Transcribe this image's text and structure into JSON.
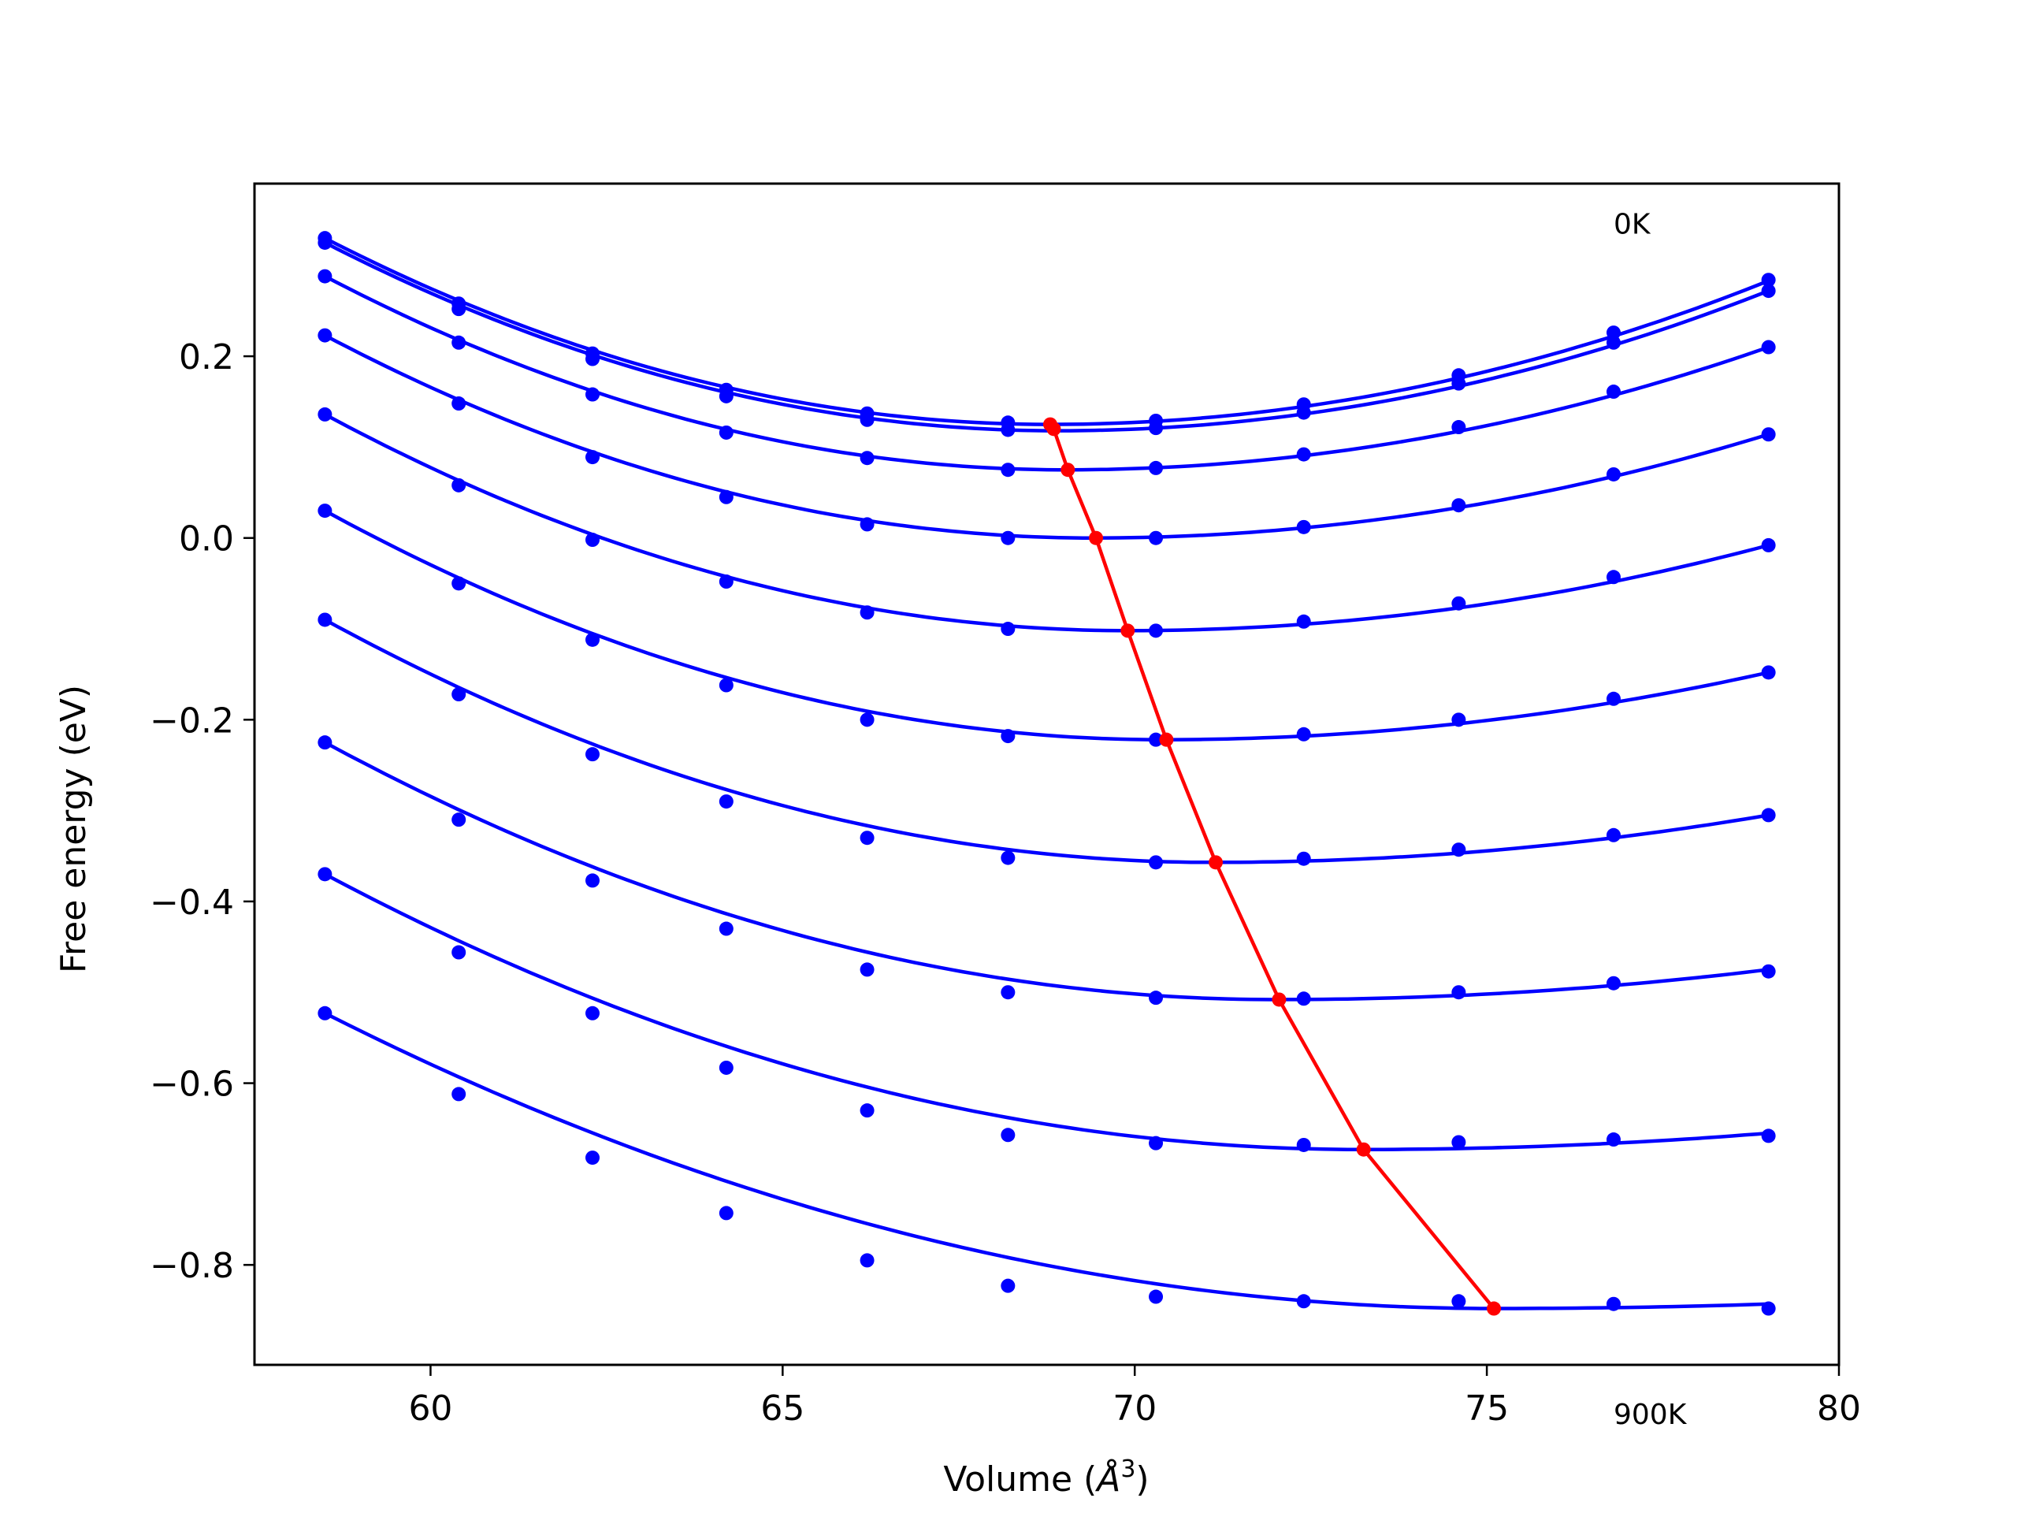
{
  "chart_data": {
    "type": "line",
    "xlabel": "Volume (",
    "xlabel_unit": "Å",
    "xlabel_unit_sup": "3",
    "xlabel_close": ")",
    "ylabel": "Free energy (eV)",
    "xlim": [
      57.5,
      80
    ],
    "ylim": [
      -0.91,
      0.39
    ],
    "xticks": [
      60,
      65,
      70,
      75,
      80
    ],
    "yticks": [
      -0.8,
      -0.6,
      -0.4,
      -0.2,
      0.0,
      0.2
    ],
    "xtick_labels": [
      "60",
      "65",
      "70",
      "75",
      "80"
    ],
    "ytick_labels": [
      "−0.8",
      "−0.6",
      "−0.4",
      "−0.2",
      "0.0",
      "0.2"
    ],
    "grid": false,
    "annotations": [
      {
        "text": "0K",
        "x": 76.8,
        "y": 0.335
      },
      {
        "text": "900K",
        "x": 76.8,
        "y": -0.975
      }
    ],
    "colors": {
      "curves": "#0000ff",
      "minima": "#ff0000"
    },
    "x": [
      58.5,
      60.4,
      62.3,
      64.2,
      66.2,
      68.2,
      70.3,
      72.4,
      74.6,
      76.8,
      79.0
    ],
    "series": [
      {
        "points": [
          0.33,
          0.258,
          0.203,
          0.163,
          0.137,
          0.127,
          0.129,
          0.147,
          0.179,
          0.226,
          0.284
        ],
        "fit_min": [
          68.8,
          0.125
        ],
        "fit_end": [
          79.0,
          0.283
        ]
      },
      {
        "points": [
          0.325,
          0.252,
          0.197,
          0.156,
          0.13,
          0.119,
          0.121,
          0.138,
          0.17,
          0.215,
          0.272
        ],
        "fit_min": [
          68.9,
          0.118
        ],
        "fit_end": [
          79.0,
          0.272
        ]
      },
      {
        "points": [
          0.288,
          0.215,
          0.158,
          0.116,
          0.088,
          0.075,
          0.077,
          0.092,
          0.122,
          0.161,
          0.21
        ],
        "fit_min": [
          69.0,
          0.075
        ],
        "fit_end": [
          79.0,
          0.21
        ]
      },
      {
        "points": [
          0.223,
          0.148,
          0.089,
          0.045,
          0.015,
          0.0,
          0.0,
          0.012,
          0.036,
          0.07,
          0.114
        ],
        "fit_min": [
          69.4,
          0.0
        ],
        "fit_end": [
          79.0,
          0.114
        ]
      },
      {
        "points": [
          0.136,
          0.058,
          -0.002,
          -0.048,
          -0.082,
          -0.1,
          -0.102,
          -0.092,
          -0.072,
          -0.043,
          -0.008
        ],
        "fit_min": [
          69.9,
          -0.102
        ],
        "fit_end": [
          79.0,
          -0.008
        ]
      },
      {
        "points": [
          0.03,
          -0.05,
          -0.112,
          -0.162,
          -0.2,
          -0.218,
          -0.222,
          -0.216,
          -0.2,
          -0.177,
          -0.148
        ],
        "fit_min": [
          70.4,
          -0.222
        ],
        "fit_end": [
          79.0,
          -0.148
        ]
      },
      {
        "points": [
          -0.09,
          -0.172,
          -0.238,
          -0.29,
          -0.33,
          -0.352,
          -0.357,
          -0.353,
          -0.343,
          -0.327,
          -0.305
        ],
        "fit_min": [
          71.1,
          -0.357
        ],
        "fit_end": [
          79.0,
          -0.305
        ]
      },
      {
        "points": [
          -0.225,
          -0.31,
          -0.377,
          -0.43,
          -0.475,
          -0.5,
          -0.506,
          -0.507,
          -0.5,
          -0.49,
          -0.477
        ],
        "fit_min": [
          72.0,
          -0.508
        ],
        "fit_end": [
          79.0,
          -0.475
        ]
      },
      {
        "points": [
          -0.37,
          -0.456,
          -0.523,
          -0.583,
          -0.63,
          -0.657,
          -0.666,
          -0.668,
          -0.665,
          -0.662,
          -0.658
        ],
        "fit_min": [
          73.2,
          -0.673
        ],
        "fit_end": [
          79.0,
          -0.655
        ]
      },
      {
        "points": [
          -0.523,
          -0.612,
          -0.682,
          -0.743,
          -0.795,
          -0.823,
          -0.835,
          -0.84,
          -0.84,
          -0.843,
          -0.848
        ],
        "fit_min": [
          75.1,
          -0.848
        ],
        "fit_end": [
          79.0,
          -0.843
        ]
      }
    ],
    "minima_line": {
      "x": [
        68.8,
        68.85,
        69.05,
        69.45,
        69.9,
        70.45,
        71.15,
        72.05,
        73.25,
        75.1
      ],
      "y": [
        0.125,
        0.12,
        0.075,
        0.0,
        -0.102,
        -0.222,
        -0.357,
        -0.508,
        -0.673,
        -0.848
      ]
    }
  }
}
